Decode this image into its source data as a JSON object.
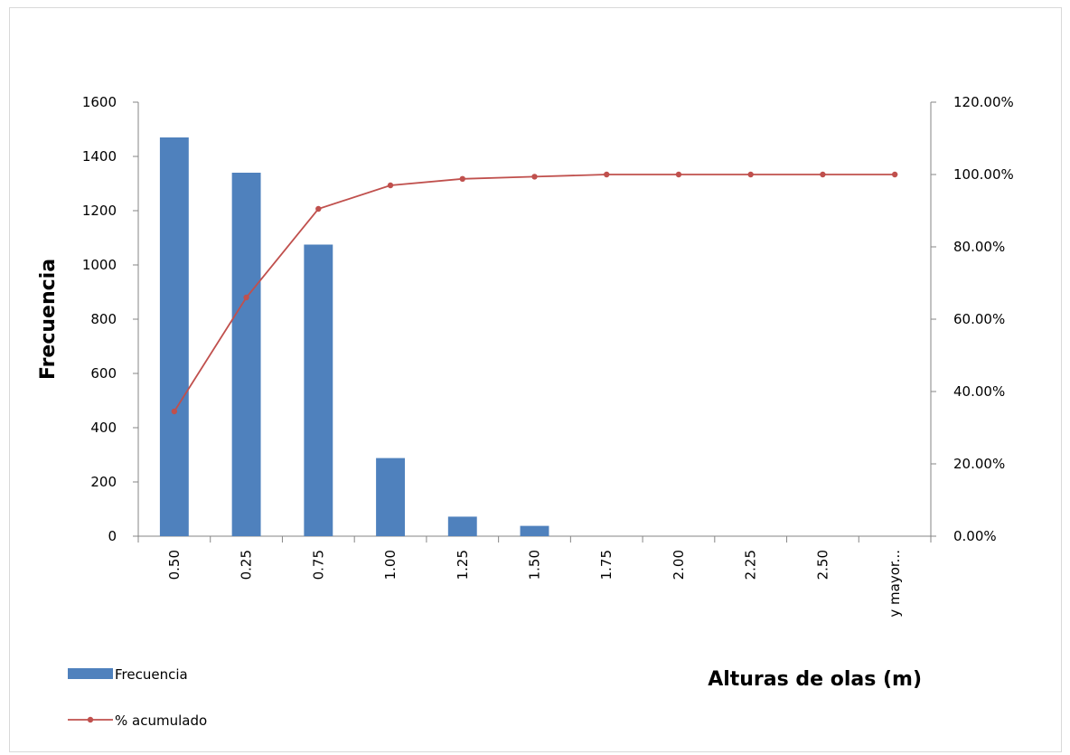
{
  "chart_data": {
    "type": "bar",
    "categories": [
      "0.50",
      "0.25",
      "0.75",
      "1.00",
      "1.25",
      "1.50",
      "1.75",
      "2.00",
      "2.25",
      "2.50",
      "y mayor..."
    ],
    "series": [
      {
        "name": "Frecuencia",
        "type": "bar",
        "axis": "left",
        "color": "#4f81bd",
        "values": [
          1470,
          1340,
          1075,
          288,
          72,
          38,
          0,
          0,
          0,
          0,
          0
        ]
      },
      {
        "name": "% acumulado",
        "type": "line",
        "axis": "right",
        "color": "#c0504d",
        "values": [
          34.5,
          66.0,
          90.5,
          97.0,
          98.8,
          99.4,
          100.0,
          100.0,
          100.0,
          100.0,
          100.0
        ]
      }
    ],
    "ylabel": "Frecuencia",
    "xlabel": "Alturas de olas (m)",
    "ylim": [
      0,
      1600
    ],
    "yticks": [
      0,
      200,
      400,
      600,
      800,
      1000,
      1200,
      1400,
      1600
    ],
    "y2lim": [
      0,
      120
    ],
    "y2ticks": [
      "0.00%",
      "20.00%",
      "40.00%",
      "60.00%",
      "80.00%",
      "100.00%",
      "120.00%"
    ],
    "grid": false,
    "legend_position": "bottom-left"
  }
}
